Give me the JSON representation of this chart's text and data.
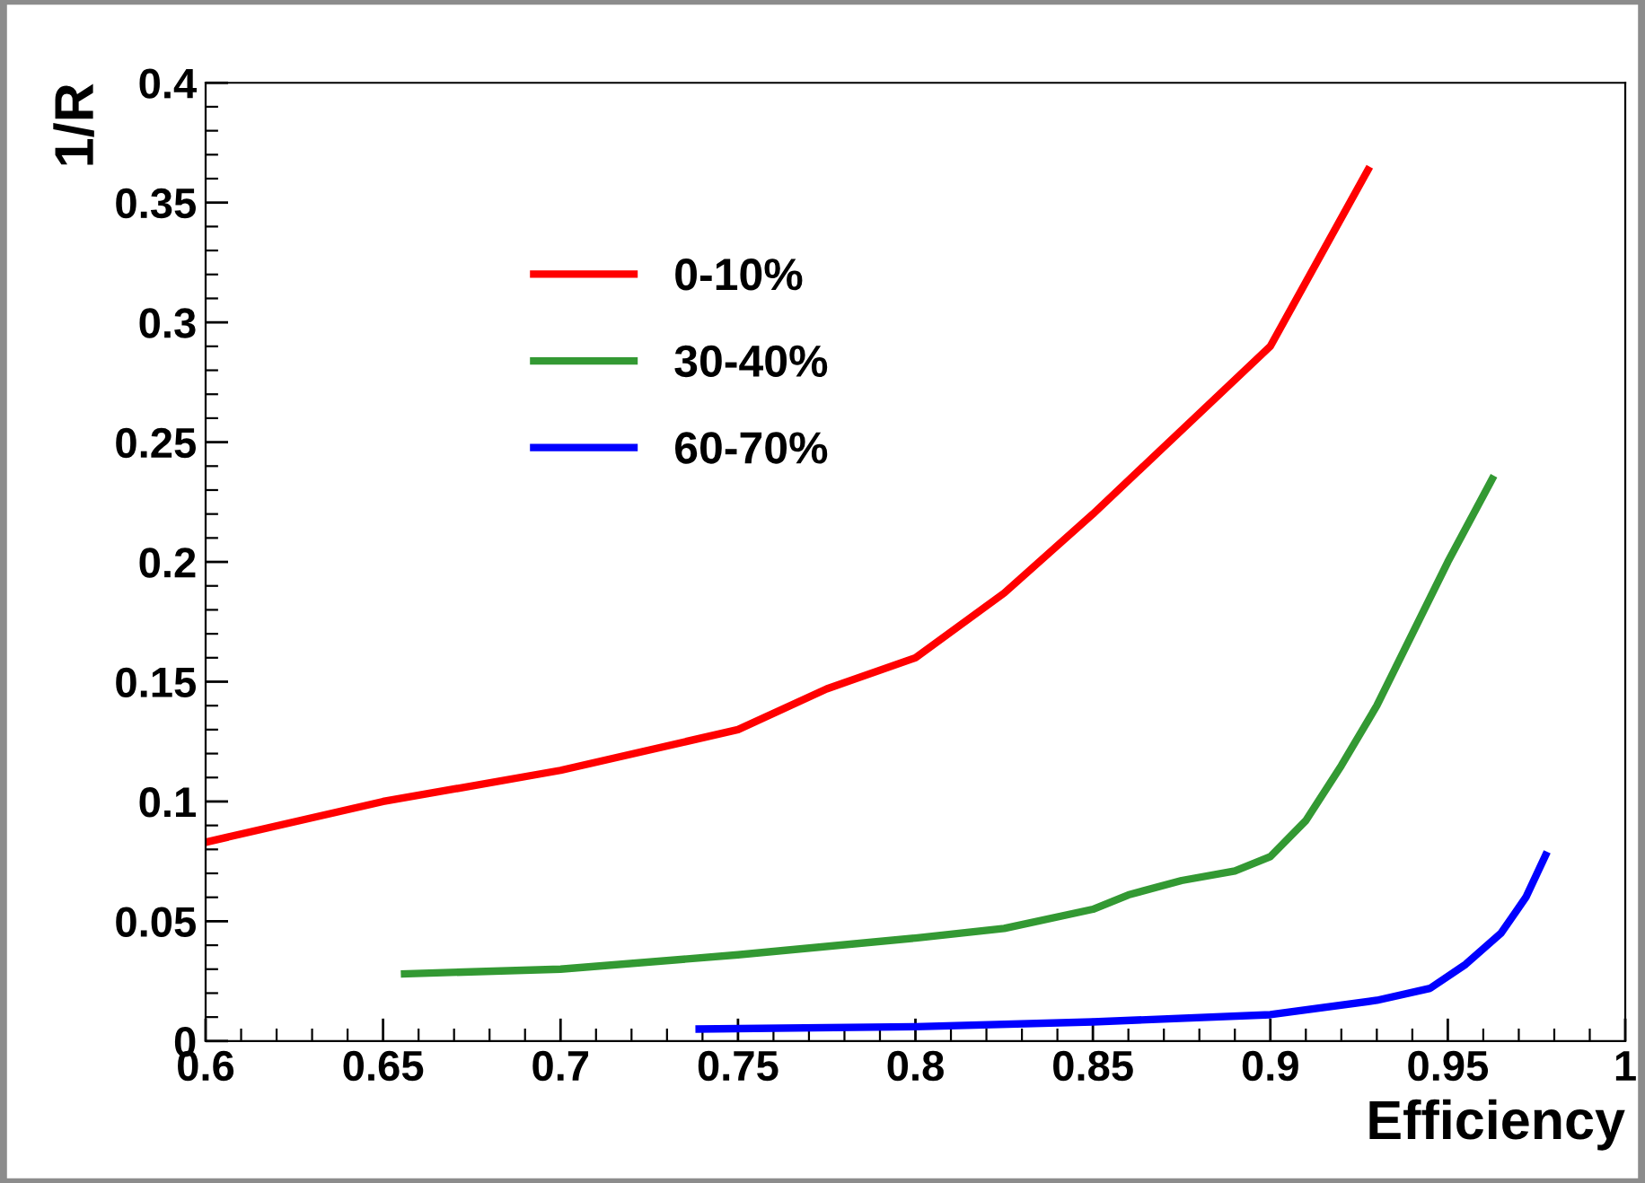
{
  "chart_data": {
    "type": "line",
    "xlabel": "Efficiency",
    "ylabel": "1/R",
    "xlim": [
      0.6,
      1
    ],
    "ylim": [
      0,
      0.4
    ],
    "xticks": [
      0.6,
      0.65,
      0.7,
      0.75,
      0.8,
      0.85,
      0.9,
      0.95,
      1
    ],
    "yticks": [
      0,
      0.05,
      0.1,
      0.15,
      0.2,
      0.25,
      0.3,
      0.35,
      0.4
    ],
    "legend": "top left",
    "grid": false,
    "line_style": "solid",
    "marker": "none",
    "series": [
      {
        "name": "0-10%",
        "color": "#ff0000",
        "x": [
          0.6,
          0.65,
          0.7,
          0.75,
          0.775,
          0.8,
          0.825,
          0.85,
          0.875,
          0.9,
          0.928
        ],
        "values": [
          0.083,
          0.1,
          0.113,
          0.13,
          0.147,
          0.16,
          0.187,
          0.22,
          0.255,
          0.29,
          0.365
        ]
      },
      {
        "name": "30-40%",
        "color": "#339933",
        "x": [
          0.655,
          0.7,
          0.75,
          0.8,
          0.825,
          0.85,
          0.86,
          0.875,
          0.89,
          0.9,
          0.91,
          0.92,
          0.93,
          0.94,
          0.95,
          0.963
        ],
        "values": [
          0.028,
          0.03,
          0.036,
          0.043,
          0.047,
          0.055,
          0.061,
          0.067,
          0.071,
          0.077,
          0.092,
          0.115,
          0.14,
          0.17,
          0.2,
          0.236
        ]
      },
      {
        "name": "60-70%",
        "color": "#0000ff",
        "x": [
          0.738,
          0.8,
          0.85,
          0.9,
          0.93,
          0.945,
          0.955,
          0.965,
          0.972,
          0.978
        ],
        "values": [
          0.005,
          0.006,
          0.008,
          0.011,
          0.017,
          0.022,
          0.032,
          0.045,
          0.06,
          0.079
        ]
      }
    ]
  }
}
